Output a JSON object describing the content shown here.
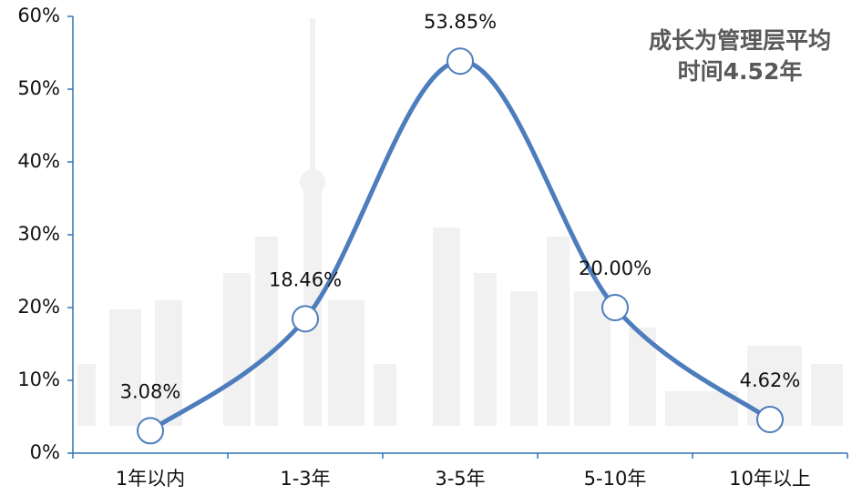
{
  "chart_data": {
    "type": "line",
    "smooth": true,
    "categories": [
      "1年以内",
      "1-3年",
      "3-5年",
      "5-10年",
      "10年以上"
    ],
    "values": [
      3.08,
      18.46,
      53.85,
      20.0,
      4.62
    ],
    "value_labels": [
      "3.08%",
      "18.46%",
      "53.85%",
      "20.00%",
      "4.62%"
    ],
    "color": "#4e7dbd",
    "ylim": [
      0,
      60
    ],
    "yticks": [
      {
        "value": 0,
        "label": "0%"
      },
      {
        "value": 10,
        "label": "10%"
      },
      {
        "value": 20,
        "label": "20%"
      },
      {
        "value": 30,
        "label": "30%"
      },
      {
        "value": 40,
        "label": "40%"
      },
      {
        "value": 50,
        "label": "50%"
      },
      {
        "value": 60,
        "label": "60%"
      }
    ],
    "annotations": [
      "成长为管理层平均",
      "时间4.52年"
    ]
  }
}
